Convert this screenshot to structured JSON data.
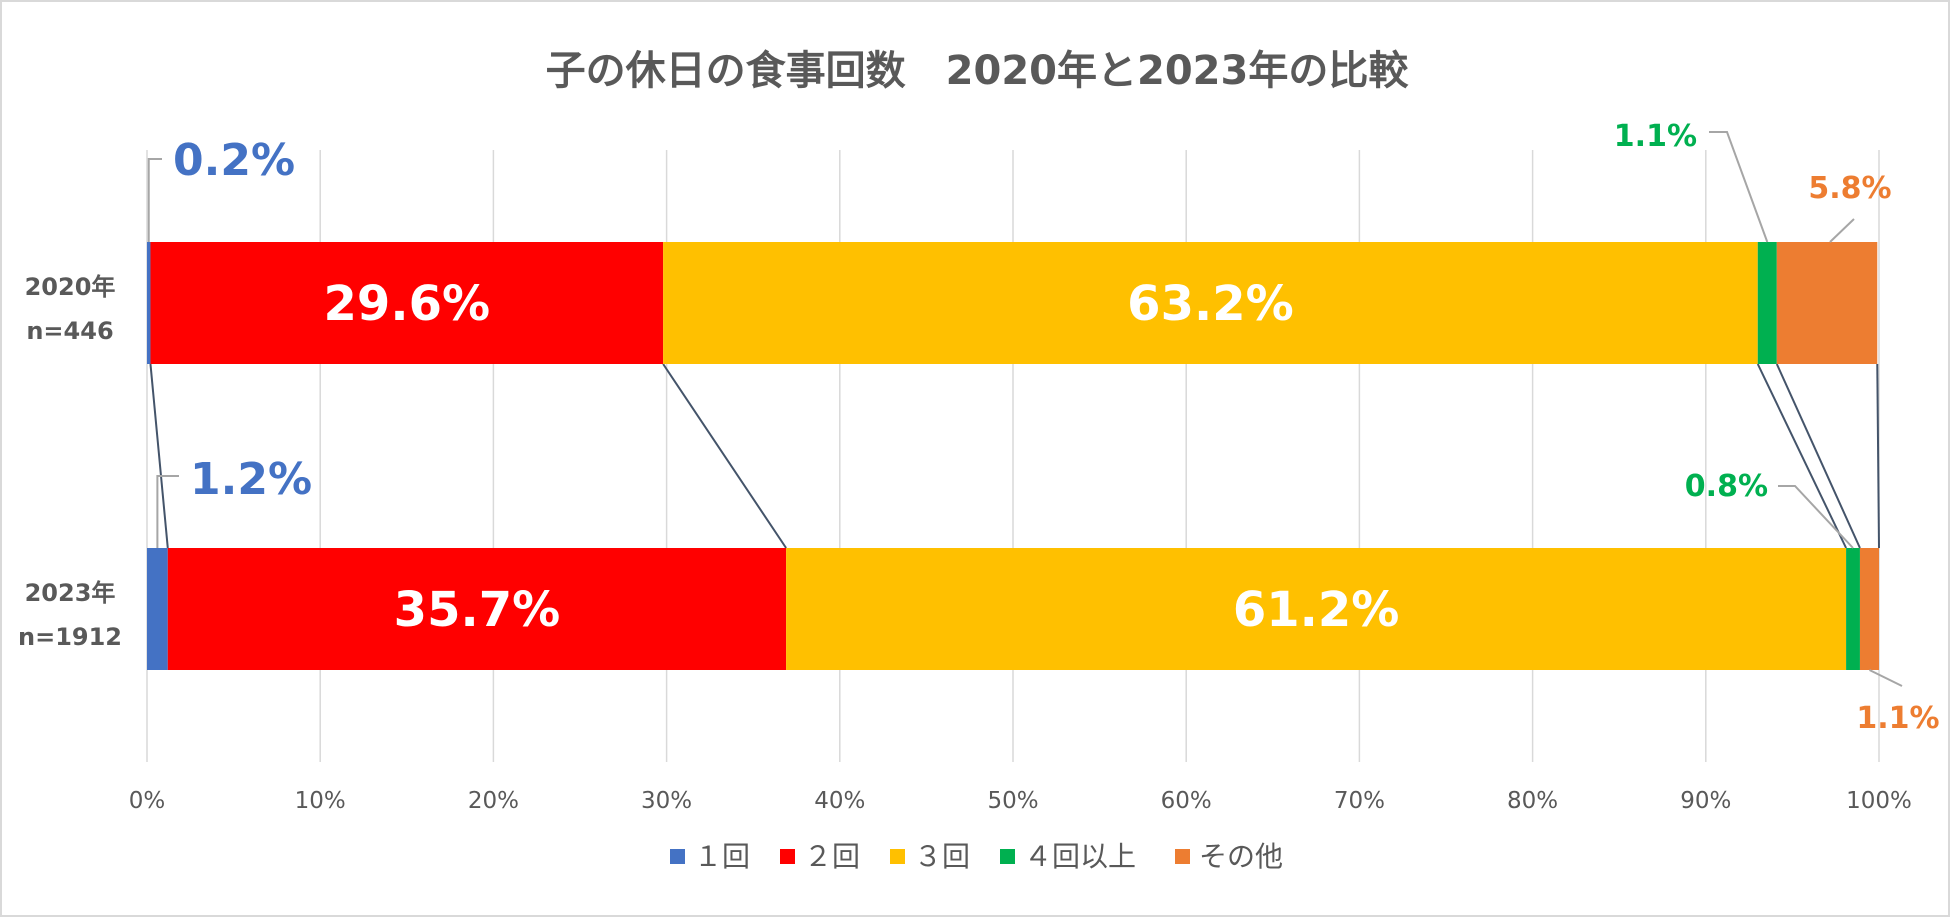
{
  "chart_data": {
    "type": "bar",
    "orientation": "horizontal",
    "stacked": "percent",
    "title": "子の休日の食事回数　2020年と2023年の比較",
    "categories": [
      {
        "line1": "2020年",
        "line2": "n=446"
      },
      {
        "line1": "2023年",
        "line2": "n=1912"
      }
    ],
    "series": [
      {
        "name": "１回",
        "color": "#4472c4",
        "values": [
          0.2,
          1.2
        ],
        "labels": [
          "0.2%",
          "1.2%"
        ]
      },
      {
        "name": "２回",
        "color": "#ff0000",
        "values": [
          29.6,
          35.7
        ],
        "labels": [
          "29.6%",
          "35.7%"
        ]
      },
      {
        "name": "３回",
        "color": "#ffc000",
        "values": [
          63.2,
          61.2
        ],
        "labels": [
          "63.2%",
          "61.2%"
        ]
      },
      {
        "name": "４回以上",
        "color": "#00b050",
        "values": [
          1.1,
          0.8
        ],
        "labels": [
          "1.1%",
          "0.8%"
        ]
      },
      {
        "name": "その他",
        "color": "#ed7d31",
        "values": [
          5.8,
          1.1
        ],
        "labels": [
          "5.8%",
          "1.1%"
        ]
      }
    ],
    "xlim": [
      0,
      100
    ],
    "xticks": [
      "0%",
      "10%",
      "20%",
      "30%",
      "40%",
      "50%",
      "60%",
      "70%",
      "80%",
      "90%",
      "100%"
    ],
    "grid": true,
    "series_lines": true,
    "legend": "bottom"
  }
}
